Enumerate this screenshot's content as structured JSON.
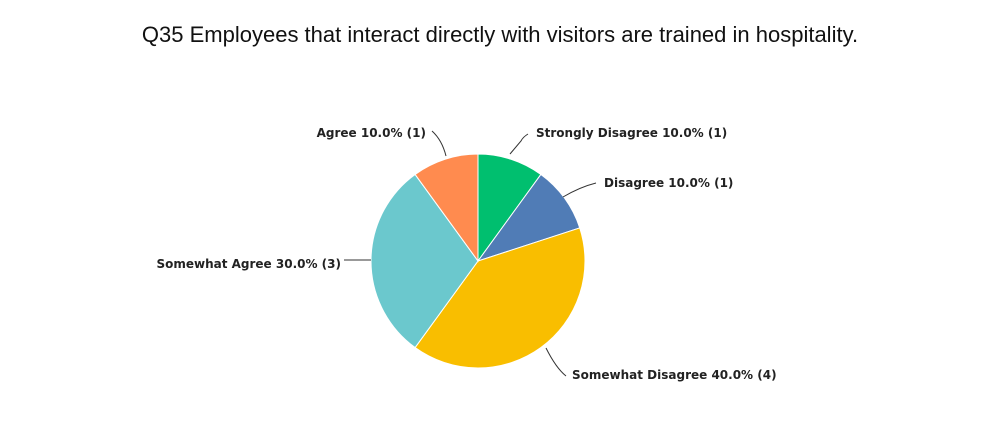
{
  "chart_data": {
    "type": "pie",
    "title": "Q35 Employees that interact directly with visitors are trained in hospitality.",
    "slices": [
      {
        "label": "Strongly Disagree",
        "percent": 10.0,
        "count": 1,
        "color": "#00BF6F",
        "text": "Strongly Disagree 10.0% (1)"
      },
      {
        "label": "Disagree",
        "percent": 10.0,
        "count": 1,
        "color": "#507CB6",
        "text": "Disagree 10.0% (1)"
      },
      {
        "label": "Somewhat Disagree",
        "percent": 40.0,
        "count": 4,
        "color": "#F9BE00",
        "text": "Somewhat Disagree 40.0% (4)"
      },
      {
        "label": "Somewhat Agree",
        "percent": 30.0,
        "count": 3,
        "color": "#6BC8CD",
        "text": "Somewhat Agree 30.0% (3)"
      },
      {
        "label": "Agree",
        "percent": 10.0,
        "count": 1,
        "color": "#FF8B4F",
        "text": "Agree 10.0% (1)"
      }
    ]
  }
}
